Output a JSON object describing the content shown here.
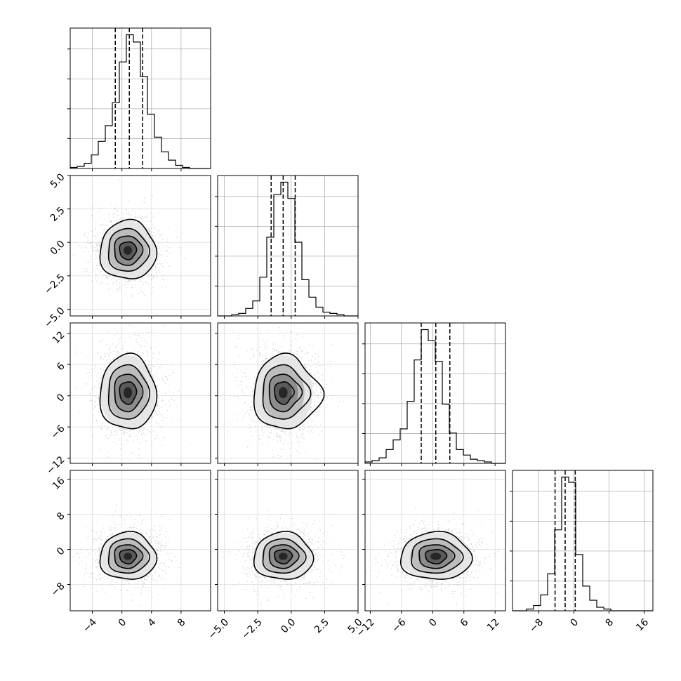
{
  "chart_data": {
    "type": "corner",
    "description_note": "",
    "parameters": [
      {
        "index": 0,
        "range": [
          -7,
          12
        ],
        "ticks": [
          -4,
          0,
          4,
          8
        ],
        "tick_labels": [
          "−4",
          "0",
          "4",
          "8"
        ],
        "quantiles": [
          -0.9,
          1.0,
          2.8
        ],
        "hist_edges_start": -7,
        "hist_bin_width": 0.95,
        "hist_counts": [
          0.1,
          0.2,
          0.5,
          1.3,
          2.6,
          4.1,
          6.3,
          10.2,
          12.8,
          12.1,
          8.8,
          5.2,
          3.0,
          1.6,
          0.8,
          0.3,
          0.1,
          0,
          0,
          0
        ]
      },
      {
        "index": 1,
        "range": [
          -5.5,
          5.0
        ],
        "ticks": [
          -5.0,
          -2.5,
          0.0,
          2.5,
          5.0
        ],
        "tick_labels": [
          "−5.0",
          "−2.5",
          "0.0",
          "2.5",
          "5.0"
        ],
        "quantiles": [
          -1.5,
          -0.6,
          0.3
        ],
        "hist_edges_start": -5.5,
        "hist_bin_width": 0.525,
        "hist_counts": [
          0,
          0,
          0.1,
          0.2,
          0.6,
          1.2,
          3.1,
          6.3,
          9.7,
          10.7,
          9.4,
          5.9,
          2.9,
          1.5,
          0.7,
          0.3,
          0.2,
          0.1,
          0,
          0
        ]
      },
      {
        "index": 2,
        "range": [
          -13,
          14
        ],
        "ticks": [
          -12,
          -6,
          0,
          6,
          12
        ],
        "tick_labels": [
          "−12",
          "−6",
          "0",
          "6",
          "12"
        ],
        "quantiles": [
          -2.2,
          0.6,
          3.3
        ],
        "hist_edges_start": -13,
        "hist_bin_width": 1.35,
        "hist_counts": [
          0.1,
          0.2,
          0.4,
          1.0,
          1.7,
          2.5,
          4.5,
          7.5,
          9.7,
          8.9,
          7.4,
          4.3,
          2.2,
          1.0,
          0.6,
          0.3,
          0.2,
          0.1,
          0,
          0
        ]
      },
      {
        "index": 3,
        "range": [
          -14,
          18
        ],
        "ticks": [
          -8,
          0,
          8,
          16
        ],
        "tick_labels": [
          "−8",
          "0",
          "8",
          "16"
        ],
        "quantiles": [
          -4.3,
          -2.0,
          0.3
        ],
        "hist_edges_start": -14,
        "hist_bin_width": 1.6,
        "hist_counts": [
          0,
          0,
          0.1,
          0.3,
          0.9,
          2.1,
          4.6,
          7.6,
          7.3,
          3.2,
          1.4,
          0.6,
          0.2,
          0.1,
          0,
          0,
          0,
          0,
          0,
          0
        ]
      }
    ],
    "y_ticks": {
      "1": {
        "ticks": [
          -5.0,
          -2.5,
          0.0,
          2.5,
          5.0
        ],
        "tick_labels": [
          "−5.0",
          "−2.5",
          "0.0",
          "2.5",
          "5.0"
        ]
      },
      "2": {
        "ticks": [
          -12,
          -6,
          0,
          6,
          12
        ],
        "tick_labels": [
          "−12",
          "−6",
          "0",
          "6",
          "12"
        ]
      },
      "3": {
        "ticks": [
          -8,
          0,
          8,
          16
        ],
        "tick_labels": [
          "−8",
          "0",
          "8",
          "16"
        ]
      }
    },
    "pairs": [
      {
        "row": 1,
        "col": 0,
        "center": [
          0.8,
          -0.6
        ],
        "sigma": [
          1.9,
          1.1
        ],
        "skew": 0.0
      },
      {
        "row": 2,
        "col": 0,
        "center": [
          0.8,
          0.6
        ],
        "sigma": [
          1.9,
          3.6
        ],
        "skew": 0.0
      },
      {
        "row": 2,
        "col": 1,
        "center": [
          -0.6,
          0.6
        ],
        "sigma": [
          1.1,
          3.6
        ],
        "skew": 0.35
      },
      {
        "row": 3,
        "col": 0,
        "center": [
          0.8,
          -1.6
        ],
        "sigma": [
          1.9,
          2.7
        ],
        "skew": 0.0
      },
      {
        "row": 3,
        "col": 1,
        "center": [
          -0.6,
          -1.6
        ],
        "sigma": [
          1.1,
          2.7
        ],
        "skew": 0.0
      },
      {
        "row": 3,
        "col": 2,
        "center": [
          0.6,
          -1.6
        ],
        "sigma": [
          3.4,
          2.7
        ],
        "skew": 0.0
      }
    ],
    "grid": true,
    "colors": {
      "line": "#000000",
      "grid": "#b0b0b0",
      "scatter": "#9a9a9a"
    }
  }
}
